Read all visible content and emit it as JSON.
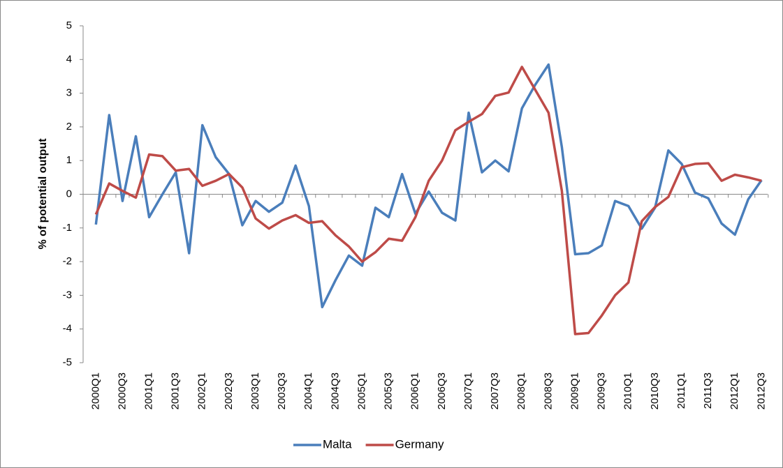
{
  "chart_data": {
    "type": "line",
    "y_label": "% of potential output",
    "categories": [
      "2000Q1",
      null,
      "2000Q3",
      null,
      "2001Q1",
      null,
      "2001Q3",
      null,
      "2002Q1",
      null,
      "2002Q3",
      null,
      "2003Q1",
      null,
      "2003Q3",
      null,
      "2004Q1",
      null,
      "2004Q3",
      null,
      "2005Q1",
      null,
      "2005Q3",
      null,
      "2006Q1",
      null,
      "2006Q3",
      null,
      "2007Q1",
      null,
      "2007Q3",
      null,
      "2008Q1",
      null,
      "2008Q3",
      null,
      "2009Q1",
      null,
      "2009Q3",
      null,
      "2010Q1",
      null,
      "2010Q3",
      null,
      "2011Q1",
      null,
      "2011Q3",
      null,
      "2012Q1",
      null,
      "2012Q3"
    ],
    "series": [
      {
        "name": "Malta",
        "color": "#4a7ebb",
        "values": [
          -0.9,
          2.35,
          -0.2,
          1.72,
          -0.68,
          0.0,
          0.65,
          -1.75,
          2.05,
          1.1,
          0.6,
          -0.92,
          -0.2,
          -0.52,
          -0.25,
          0.85,
          -0.35,
          -3.35,
          -2.55,
          -1.82,
          -2.12,
          -0.4,
          -0.68,
          0.6,
          -0.58,
          0.08,
          -0.55,
          -0.78,
          2.42,
          0.65,
          1.0,
          0.68,
          2.55,
          3.25,
          3.85,
          1.4,
          -1.78,
          -1.75,
          -1.52,
          -0.2,
          -0.35,
          -1.02,
          -0.4,
          1.3,
          0.9,
          0.05,
          -0.12,
          -0.87,
          -1.2,
          -0.15,
          0.42
        ]
      },
      {
        "name": "Germany",
        "color": "#be4b48",
        "values": [
          -0.6,
          0.32,
          0.1,
          -0.1,
          1.18,
          1.13,
          0.7,
          0.75,
          0.25,
          0.4,
          0.6,
          0.2,
          -0.72,
          -1.02,
          -0.78,
          -0.62,
          -0.85,
          -0.8,
          -1.22,
          -1.55,
          -2.0,
          -1.72,
          -1.32,
          -1.38,
          -0.68,
          0.4,
          1.0,
          1.9,
          2.15,
          2.38,
          2.92,
          3.02,
          3.78,
          3.1,
          2.42,
          0.1,
          -4.15,
          -4.12,
          -3.6,
          -3.0,
          -2.62,
          -0.8,
          -0.38,
          -0.08,
          0.8,
          0.9,
          0.92,
          0.4,
          0.58,
          0.5,
          0.4
        ]
      }
    ],
    "ylim": [
      -5,
      5
    ],
    "yticks": [
      -5,
      -4,
      -3,
      -2,
      -1,
      0,
      1,
      2,
      3,
      4,
      5
    ],
    "legend": "bottom"
  }
}
